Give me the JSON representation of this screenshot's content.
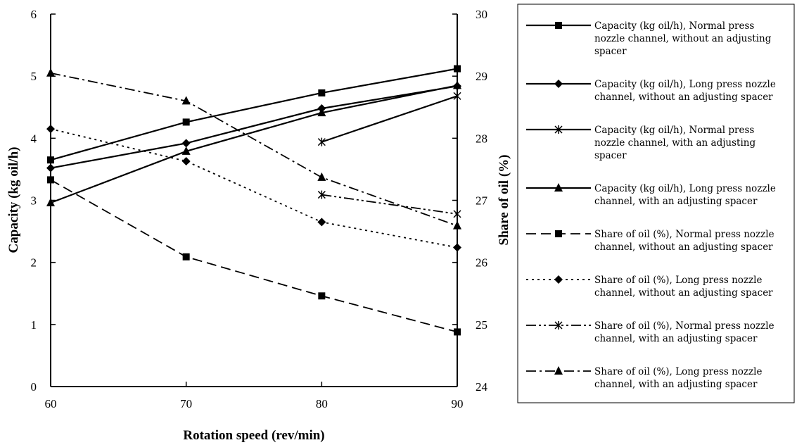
{
  "chart_data": {
    "type": "line",
    "title": "",
    "xlabel": "Rotation speed (rev/min)",
    "ylabel": "Capacity (kg oil/h)",
    "y2label": "Share of oil (%)",
    "x": [
      60,
      70,
      80,
      90
    ],
    "xticks": [
      "60",
      "70",
      "80",
      "90"
    ],
    "xlim": [
      60,
      90
    ],
    "ylim": [
      0,
      6
    ],
    "y2lim": [
      24,
      30
    ],
    "yticks": [
      "0",
      "1",
      "2",
      "3",
      "4",
      "5",
      "6"
    ],
    "y2ticks": [
      "24",
      "25",
      "26",
      "27",
      "28",
      "29",
      "30"
    ],
    "grid": false,
    "legend_position": "right",
    "series": [
      {
        "name": "Capacity (kg oil/h), Normal press nozzle channel, without an adjusting spacer",
        "legend_lines": [
          "Capacity (kg oil/h), Normal press",
          "nozzle channel, without an adjusting",
          "spacer"
        ],
        "axis": "left",
        "marker": "square",
        "dash": "solid",
        "values": [
          3.65,
          4.26,
          4.73,
          5.12
        ]
      },
      {
        "name": "Capacity (kg oil/h), Long press nozzle channel, without an adjusting spacer",
        "legend_lines": [
          "Capacity (kg oil/h), Long press nozzle",
          "channel, without an adjusting spacer"
        ],
        "axis": "left",
        "marker": "diamond",
        "dash": "solid",
        "values": [
          3.52,
          3.92,
          4.48,
          4.84
        ]
      },
      {
        "name": "Capacity (kg oil/h), Normal press nozzle channel, with an adjusting spacer",
        "legend_lines": [
          "Capacity (kg oil/h), Normal press",
          "nozzle channel, with an adjusting",
          "spacer"
        ],
        "axis": "left",
        "marker": "star",
        "dash": "solid",
        "values": [
          null,
          null,
          3.94,
          4.68
        ]
      },
      {
        "name": "Capacity (kg oil/h), Long press nozzle channel, with an adjusting spacer",
        "legend_lines": [
          "Capacity (kg oil/h), Long press nozzle",
          "channel, with an adjusting spacer"
        ],
        "axis": "left",
        "marker": "triangle",
        "dash": "solid",
        "values": [
          2.96,
          3.79,
          4.41,
          4.85
        ]
      },
      {
        "name": "Share of oil (%), Normal press nozzle channel, without an adjusting spacer",
        "legend_lines": [
          "Share of oil (%), Normal press nozzle",
          "channel, without an adjusting spacer"
        ],
        "axis": "right",
        "marker": "square",
        "dash": "dashed",
        "values": [
          27.33,
          26.09,
          25.46,
          24.88
        ]
      },
      {
        "name": "Share of oil (%), Long press nozzle channel, without an adjusting spacer",
        "legend_lines": [
          "Share of oil (%), Long press nozzle",
          "channel, without an adjusting spacer"
        ],
        "axis": "right",
        "marker": "diamond",
        "dash": "dotted",
        "values": [
          28.15,
          27.63,
          26.65,
          26.24
        ]
      },
      {
        "name": "Share of oil (%), Normal press nozzle channel, with an adjusting spacer",
        "legend_lines": [
          "Share of oil (%), Normal press nozzle",
          "channel, with an adjusting spacer"
        ],
        "axis": "right",
        "marker": "star",
        "dash": "dashdotdot",
        "values": [
          null,
          null,
          27.09,
          26.78
        ]
      },
      {
        "name": "Share of oil (%), Long press nozzle channel, with an adjusting spacer",
        "legend_lines": [
          "Share of oil (%), Long press nozzle",
          "channel, with an adjusting spacer"
        ],
        "axis": "right",
        "marker": "triangle",
        "dash": "dashdot",
        "values": [
          29.05,
          28.6,
          27.37,
          26.59
        ]
      }
    ]
  }
}
